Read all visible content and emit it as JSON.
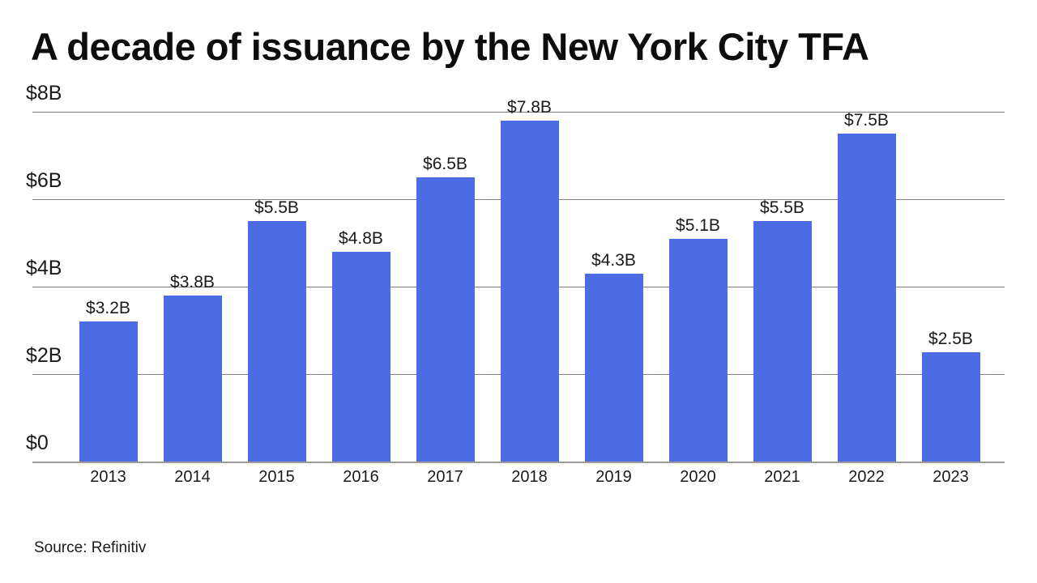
{
  "title": "A decade of issuance by the New York City TFA",
  "source": "Source: Refinitiv",
  "chart_data": {
    "type": "bar",
    "title": "A decade of issuance by the New York City TFA",
    "categories": [
      "2013",
      "2014",
      "2015",
      "2016",
      "2017",
      "2018",
      "2019",
      "2020",
      "2021",
      "2022",
      "2023"
    ],
    "values": [
      3.2,
      3.8,
      5.5,
      4.8,
      6.5,
      7.8,
      4.3,
      5.1,
      5.5,
      7.5,
      2.5
    ],
    "bar_labels": [
      "$3.2B",
      "$3.8B",
      "$5.5B",
      "$4.8B",
      "$6.5B",
      "$7.8B",
      "$4.3B",
      "$5.1B",
      "$5.5B",
      "$7.5B",
      "$2.5B"
    ],
    "y_ticks": [
      {
        "label": "$8B",
        "value": 8
      },
      {
        "label": "$6B",
        "value": 6
      },
      {
        "label": "$4B",
        "value": 4
      },
      {
        "label": "$2B",
        "value": 2
      },
      {
        "label": "$0",
        "value": 0
      }
    ],
    "ylim": [
      0,
      8
    ],
    "xlabel": "",
    "ylabel": "",
    "grid": true,
    "legend": "none",
    "bar_color": "#4d6ce4",
    "gridline_color": "#7d7d7d",
    "axis_color": "#9c9c9c",
    "text_color": "#1a1a1a",
    "source": "Source: Refinitiv"
  }
}
